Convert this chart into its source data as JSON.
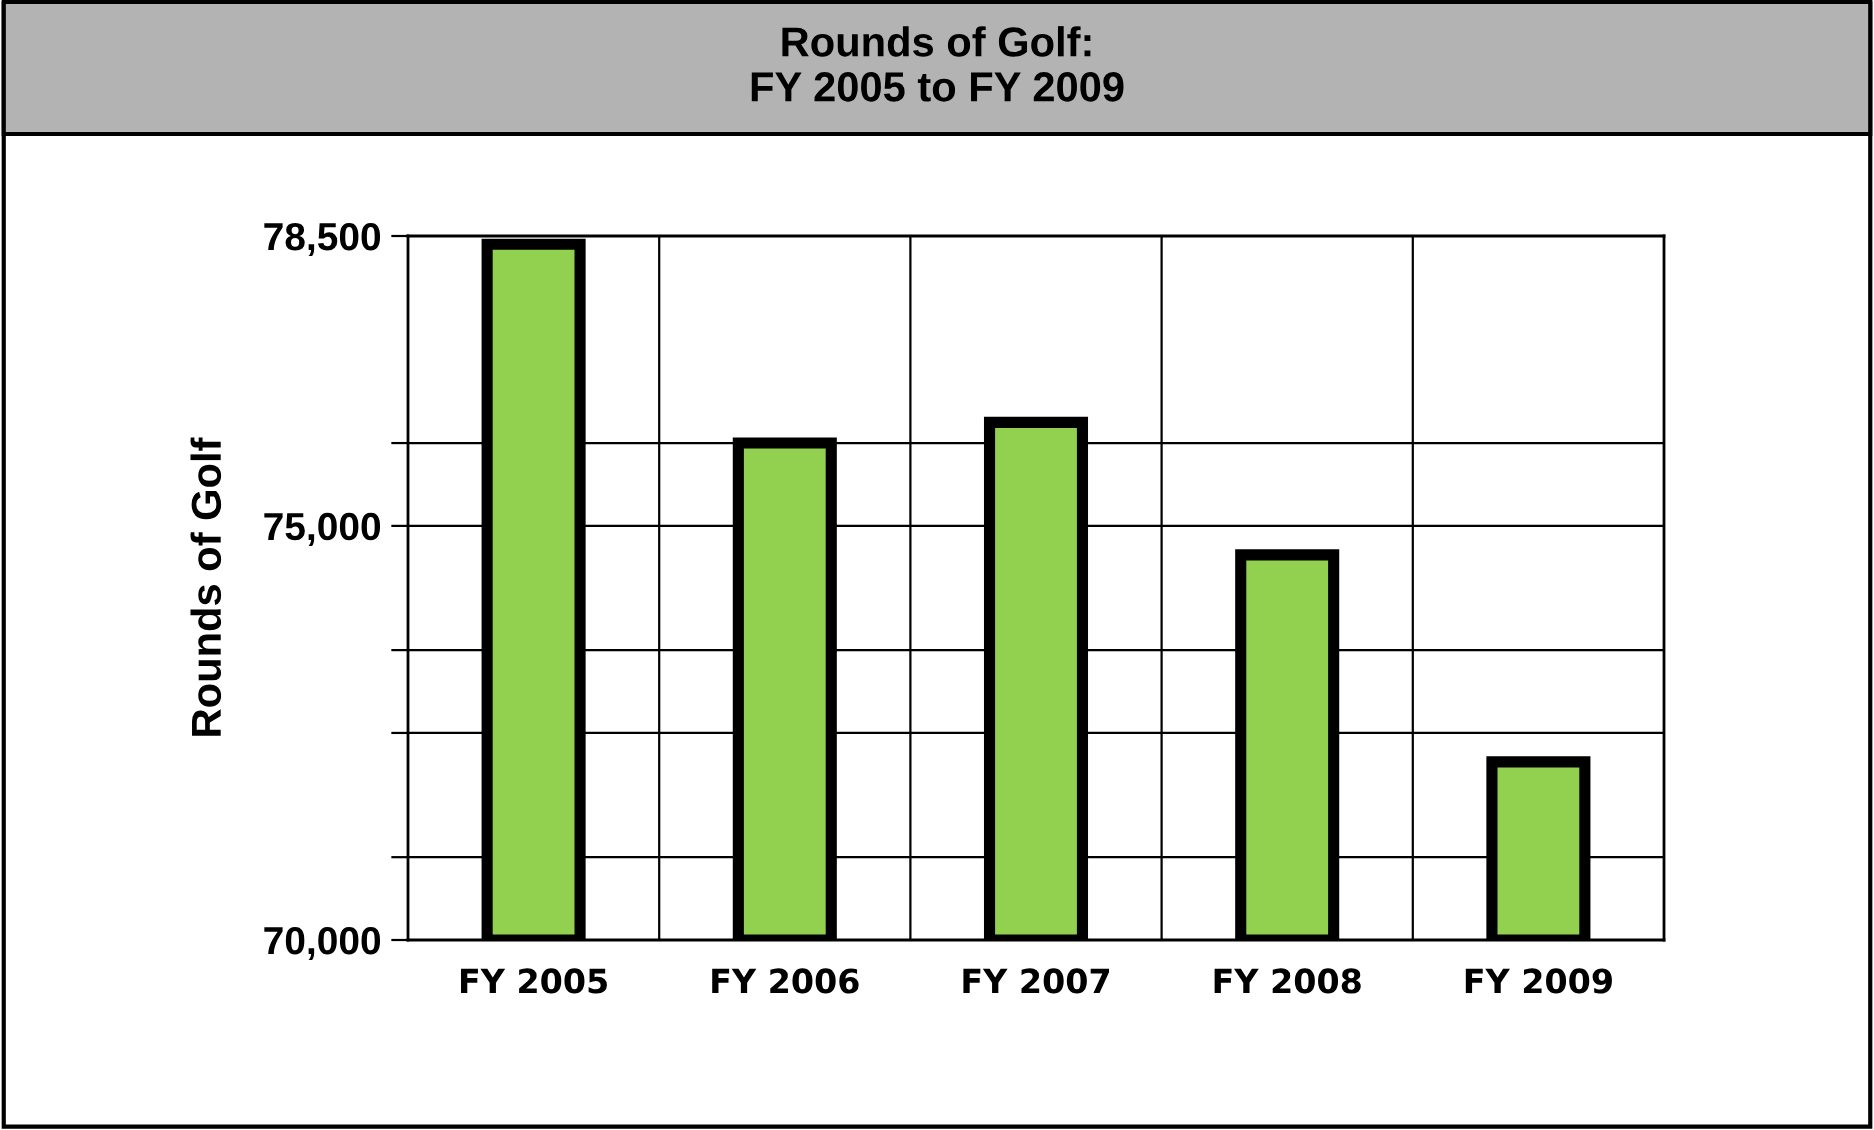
{
  "chart_data": {
    "type": "bar",
    "title": "Rounds of Golf:\nFY 2005 to FY 2009",
    "ylabel": "Rounds of Golf",
    "categories": [
      "FY 2005",
      "FY 2006",
      "FY 2007",
      "FY 2008",
      "FY 2009"
    ],
    "values": [
      78400,
      76000,
      76250,
      74650,
      72150
    ],
    "color": "#92d050",
    "ylim": [
      70000,
      78500
    ],
    "yticks": [
      {
        "value": 70000,
        "label": "70,000"
      },
      {
        "value": 71000,
        "label": null
      },
      {
        "value": 72500,
        "label": null
      },
      {
        "value": 73500,
        "label": null
      },
      {
        "value": 75000,
        "label": "75,000"
      },
      {
        "value": 76000,
        "label": null
      },
      {
        "value": 78500,
        "label": "78,500"
      }
    ],
    "grid": true
  }
}
